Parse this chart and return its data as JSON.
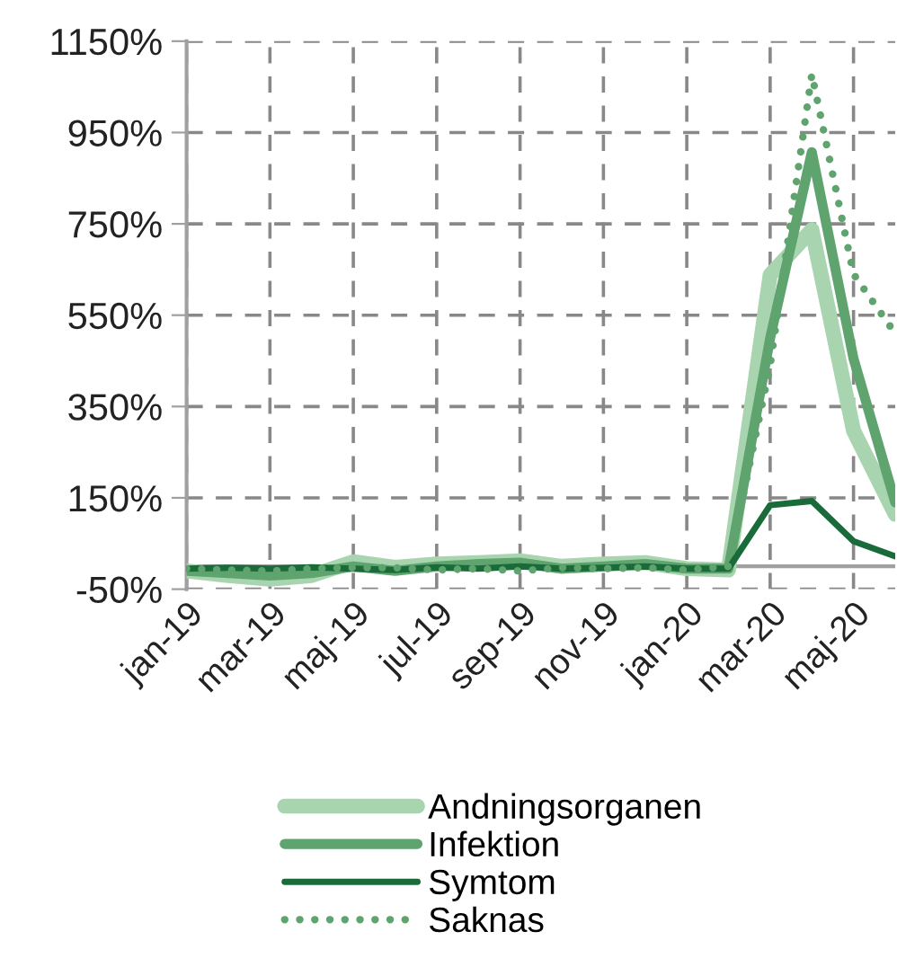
{
  "chart_data": {
    "type": "line",
    "categories": [
      "jan-19",
      null,
      "mar-19",
      null,
      "maj-19",
      null,
      "jul-19",
      null,
      "sep-19",
      null,
      "nov-19",
      null,
      "jan-20",
      null,
      "mar-20",
      null,
      "maj-20",
      null
    ],
    "series": [
      {
        "name": "Andningsorganen",
        "color": "#a8d5b0",
        "values": [
          -10,
          -20,
          -28,
          -20,
          10,
          -2,
          5,
          8,
          12,
          0,
          5,
          8,
          -5,
          -8,
          638,
          737,
          297,
          114
        ]
      },
      {
        "name": "Infektion",
        "color": "#5fa36e",
        "values": [
          -10,
          -15,
          -20,
          -15,
          0,
          -10,
          0,
          5,
          8,
          -5,
          0,
          5,
          -5,
          -5,
          500,
          907,
          455,
          140
        ]
      },
      {
        "name": "Symtom",
        "color": "#1a6b3a",
        "values": [
          -5,
          -3,
          -5,
          -2,
          -5,
          -8,
          -2,
          -5,
          0,
          -5,
          -3,
          0,
          -5,
          -5,
          134,
          143,
          55,
          22
        ]
      },
      {
        "name": "Saknas",
        "color": "#5fa36e",
        "line_style": "dotted",
        "values": [
          -5,
          -8,
          -10,
          -5,
          -3,
          -3,
          -8,
          -5,
          -10,
          -3,
          -5,
          -3,
          -8,
          0,
          440,
          1078,
          640,
          510
        ]
      }
    ],
    "ylim": [
      -50,
      1150
    ],
    "yticks": [
      {
        "value": -50,
        "label": "-50%"
      },
      {
        "value": 150,
        "label": "150%"
      },
      {
        "value": 350,
        "label": "350%"
      },
      {
        "value": 550,
        "label": "550%"
      },
      {
        "value": 750,
        "label": "750%"
      },
      {
        "value": 950,
        "label": "950%"
      },
      {
        "value": 1150,
        "label": "1150%"
      }
    ],
    "ref_lines": [
      {
        "axis": "y",
        "value": 0,
        "color": "#a0a0a0"
      }
    ],
    "grid": true,
    "legend": "bottom",
    "line_style": "solid",
    "marker": "none"
  }
}
